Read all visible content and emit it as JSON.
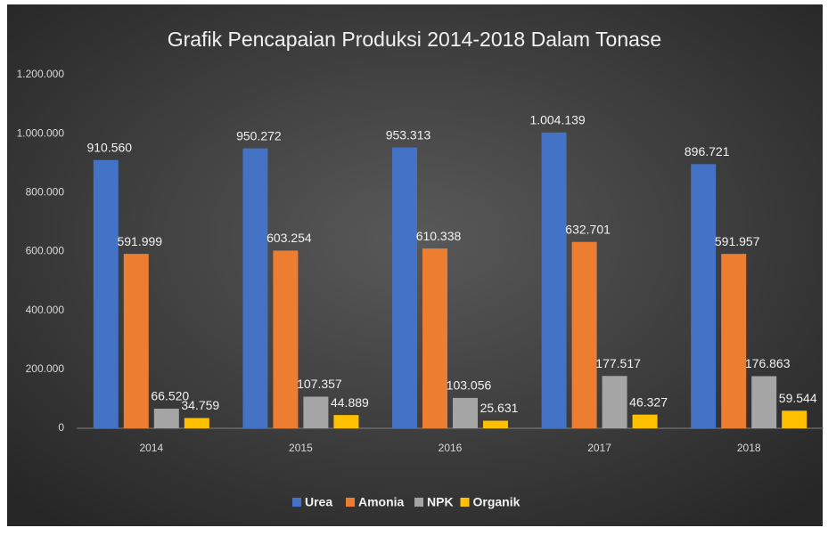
{
  "chart_data": {
    "type": "bar",
    "title": "Grafik Pencapaian Produksi 2014-2018 Dalam Tonase",
    "categories": [
      "2014",
      "2015",
      "2016",
      "2017",
      "2018"
    ],
    "series": [
      {
        "name": "Urea",
        "color": "#4472c4",
        "values": [
          910560,
          950272,
          953313,
          1004139,
          896721
        ],
        "value_labels": [
          "910.560",
          "950.272",
          "953.313",
          "1.004.139",
          "896.721"
        ]
      },
      {
        "name": "Amonia",
        "color": "#ed7d31",
        "values": [
          591999,
          603254,
          610338,
          632701,
          591957
        ],
        "value_labels": [
          "591.999",
          "603.254",
          "610.338",
          "632.701",
          "591.957"
        ]
      },
      {
        "name": "NPK",
        "color": "#a5a5a5",
        "values": [
          66520,
          107357,
          103056,
          177517,
          176863
        ],
        "value_labels": [
          "66.520",
          "107.357",
          "103.056",
          "177.517",
          "176.863"
        ]
      },
      {
        "name": "Organik",
        "color": "#ffc000",
        "values": [
          34759,
          44889,
          25631,
          46327,
          59544
        ],
        "value_labels": [
          "34.759",
          "44.889",
          "25.631",
          "46.327",
          "59.544"
        ]
      }
    ],
    "ylim": [
      0,
      1200000
    ],
    "yticks": [
      0,
      {
        "value": 200000,
        "label": "200.000"
      },
      {
        "value": 400000,
        "label": "400.000"
      },
      {
        "value": 600000,
        "label": "600.000"
      },
      {
        "value": 800000,
        "label": "800.000"
      },
      {
        "value": 1000000,
        "label": "1.000.000"
      },
      {
        "value": 1200000,
        "label": "1.200.000"
      }
    ],
    "grid": false,
    "legend": "bottom"
  }
}
